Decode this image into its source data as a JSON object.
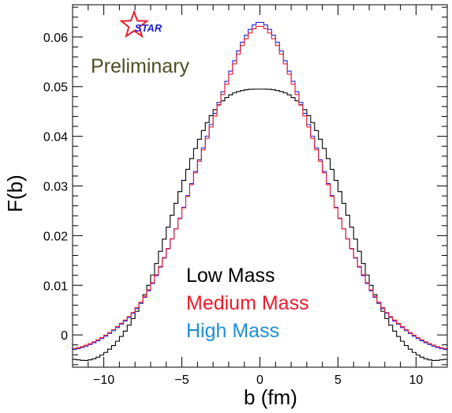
{
  "chart_data": {
    "type": "line",
    "style": "step-histogram",
    "xlabel": "b (fm)",
    "ylabel": "F(b)",
    "xlim": [
      -12,
      12
    ],
    "ylim": [
      -0.0065,
      0.0665
    ],
    "xticks": [
      -10,
      -5,
      0,
      5,
      10
    ],
    "xtick_labels": [
      "−10",
      "−5",
      "0",
      "5",
      "10"
    ],
    "yticks": [
      0,
      0.01,
      0.02,
      0.03,
      0.04,
      0.05,
      0.06
    ],
    "ytick_labels": [
      "0",
      "0.01",
      "0.02",
      "0.03",
      "0.04",
      "0.05",
      "0.06"
    ],
    "grid": false,
    "legend_position": "inside-bottom-center",
    "annotations": {
      "preliminary": "Preliminary",
      "logo_text": "STAR"
    },
    "colors": {
      "preliminary": "#4e4e22",
      "star_outline": "#e8232e",
      "star_text": "#1f1fcf"
    },
    "x": [
      -12,
      -11,
      -10,
      -9,
      -8,
      -7,
      -6,
      -5,
      -4,
      -3,
      -2,
      -1,
      0,
      1,
      2,
      3,
      4,
      5,
      6,
      7,
      8,
      9,
      10,
      11,
      12
    ],
    "series": [
      {
        "name": "Low Mass",
        "color": "#000000",
        "values": [
          -0.0049,
          -0.0051,
          -0.0038,
          -0.0008,
          0.004,
          0.011,
          0.0205,
          0.03,
          0.0385,
          0.0448,
          0.0481,
          0.0493,
          0.0495,
          0.0493,
          0.0481,
          0.0448,
          0.0385,
          0.03,
          0.0205,
          0.011,
          0.004,
          -0.0008,
          -0.0038,
          -0.0051,
          -0.0049
        ]
      },
      {
        "name": "Medium Mass",
        "color": "#ee1c2b",
        "values": [
          -0.0028,
          -0.0019,
          -0.0003,
          0.002,
          0.005,
          0.0098,
          0.0165,
          0.0245,
          0.0338,
          0.043,
          0.0515,
          0.059,
          0.0622,
          0.059,
          0.0515,
          0.043,
          0.0338,
          0.0245,
          0.0165,
          0.0098,
          0.005,
          0.002,
          -0.0003,
          -0.0019,
          -0.0028
        ]
      },
      {
        "name": "High Mass",
        "color": "#1b8fd8",
        "values": [
          -0.003,
          -0.0021,
          -0.0005,
          0.0018,
          0.0048,
          0.0096,
          0.0164,
          0.0246,
          0.0341,
          0.0435,
          0.0521,
          0.0597,
          0.063,
          0.0597,
          0.0521,
          0.0435,
          0.0341,
          0.0246,
          0.0164,
          0.0096,
          0.0048,
          0.0018,
          -0.0005,
          -0.0021,
          -0.003
        ]
      }
    ],
    "step_line_colors": {
      "Low Mass": "#000000",
      "Medium Mass": "#ee1c2b",
      "High Mass": "#2222dd"
    },
    "legend_label_colors": {
      "Low Mass": "#000000",
      "Medium Mass": "#ee1c2b",
      "High Mass": "#1b8fd8"
    }
  }
}
